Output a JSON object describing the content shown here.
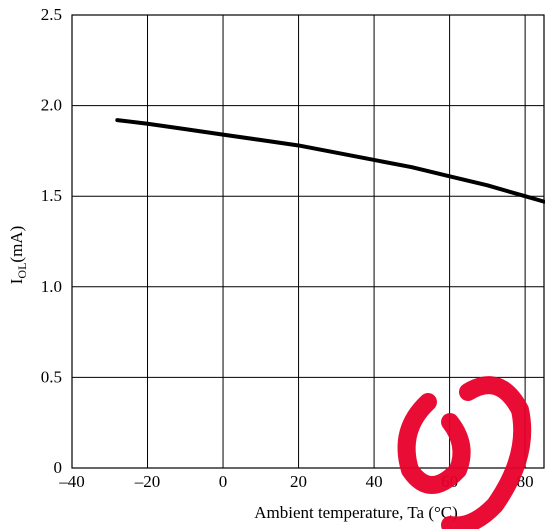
{
  "chart_data": {
    "type": "line",
    "xlabel": "Ambient temperature, Ta (°C)",
    "ylabel_main": "I",
    "ylabel_sub": "OL",
    "ylabel_unit": "(mA)",
    "xlim": [
      -40,
      85
    ],
    "ylim": [
      0,
      2.5
    ],
    "x_ticks": [
      {
        "value": -40,
        "label": "–40"
      },
      {
        "value": -20,
        "label": "–20"
      },
      {
        "value": 0,
        "label": "0"
      },
      {
        "value": 20,
        "label": "20"
      },
      {
        "value": 40,
        "label": "40"
      },
      {
        "value": 60,
        "label": "60"
      },
      {
        "value": 80,
        "label": "80"
      }
    ],
    "y_ticks": [
      {
        "value": 0,
        "label": "0"
      },
      {
        "value": 0.5,
        "label": "0.5"
      },
      {
        "value": 1.0,
        "label": "1.0"
      },
      {
        "value": 1.5,
        "label": "1.5"
      },
      {
        "value": 2.0,
        "label": "2.0"
      },
      {
        "value": 2.5,
        "label": "2.5"
      }
    ],
    "grid": true,
    "series": [
      {
        "points": [
          [
            -28,
            1.92
          ],
          [
            -20,
            1.9
          ],
          [
            -10,
            1.87
          ],
          [
            0,
            1.84
          ],
          [
            10,
            1.81
          ],
          [
            20,
            1.78
          ],
          [
            30,
            1.74
          ],
          [
            40,
            1.7
          ],
          [
            50,
            1.66
          ],
          [
            60,
            1.61
          ],
          [
            70,
            1.56
          ],
          [
            80,
            1.5
          ],
          [
            85,
            1.47
          ]
        ]
      }
    ]
  }
}
